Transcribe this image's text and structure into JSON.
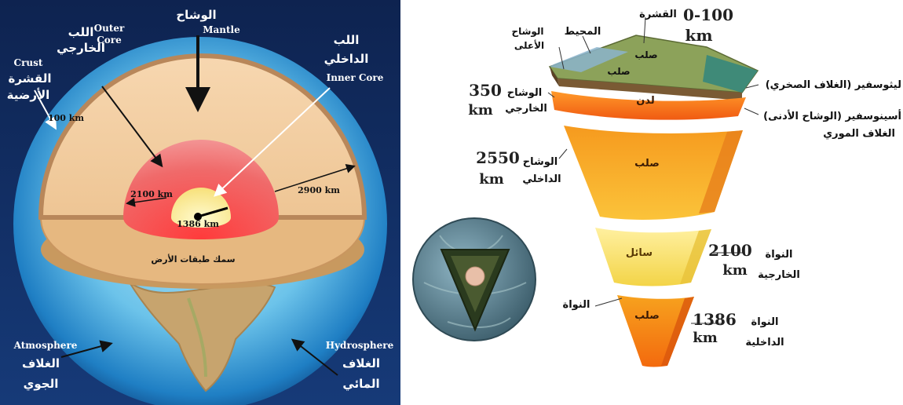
{
  "left": {
    "mantle_ar": "الوشاح",
    "mantle_en": "Mantle",
    "outer_core_ar_1": "اللب",
    "outer_core_ar_2": "الخارجي",
    "outer_core_en_1": "Outer",
    "outer_core_en_2": "Core",
    "inner_core_ar_1": "اللب",
    "inner_core_ar_2": "الداخلي",
    "inner_core_en": "Inner Core",
    "crust_en": "Crust",
    "crust_ar_1": "القشرة",
    "crust_ar_2": "الأرضية",
    "crust_thickness": "100 km",
    "outer_core_radius": "2100 km",
    "inner_core_radius": "1386 km",
    "mantle_thickness": "2900 km",
    "caption": "سمك طبقات الأرض",
    "atmosphere_en": "Atmosphere",
    "atmosphere_ar_1": "الغلاف",
    "atmosphere_ar_2": "الجوي",
    "hydrosphere_en": "Hydrosphere",
    "hydrosphere_ar_1": "الغلاف",
    "hydrosphere_ar_2": "المائي"
  },
  "right": {
    "crust_km": "0-100",
    "km": "km",
    "crust_ar": "القشرة",
    "ocean_ar": "المحيط",
    "upper_mantle_ar_1": "الوشاح",
    "upper_mantle_ar_2": "الأعلى",
    "solid_ar": "صلب",
    "plastic_ar": "لدن",
    "liquid_ar": "سائل",
    "lithosphere_ar": "ليثوسفير (الغلاف الصخري)",
    "asthenosphere_ar": "أسينوسفير (الوشاح الأدنى)",
    "moho_ar": "الغلاف الموري",
    "outer_mantle_km": "350",
    "outer_mantle_ar_1": "الوشاح",
    "outer_mantle_ar_2": "الخارجي",
    "inner_mantle_km": "2550",
    "inner_mantle_ar_1": "الوشاح",
    "inner_mantle_ar_2": "الداخلي",
    "outer_core_km": "2100",
    "outer_core_ar_1": "النواة",
    "outer_core_ar_2": "الخارجية",
    "core_ar": "النواة",
    "inner_core_km": "1386",
    "inner_core_ar_1": "النواة",
    "inner_core_ar_2": "الداخلية"
  }
}
